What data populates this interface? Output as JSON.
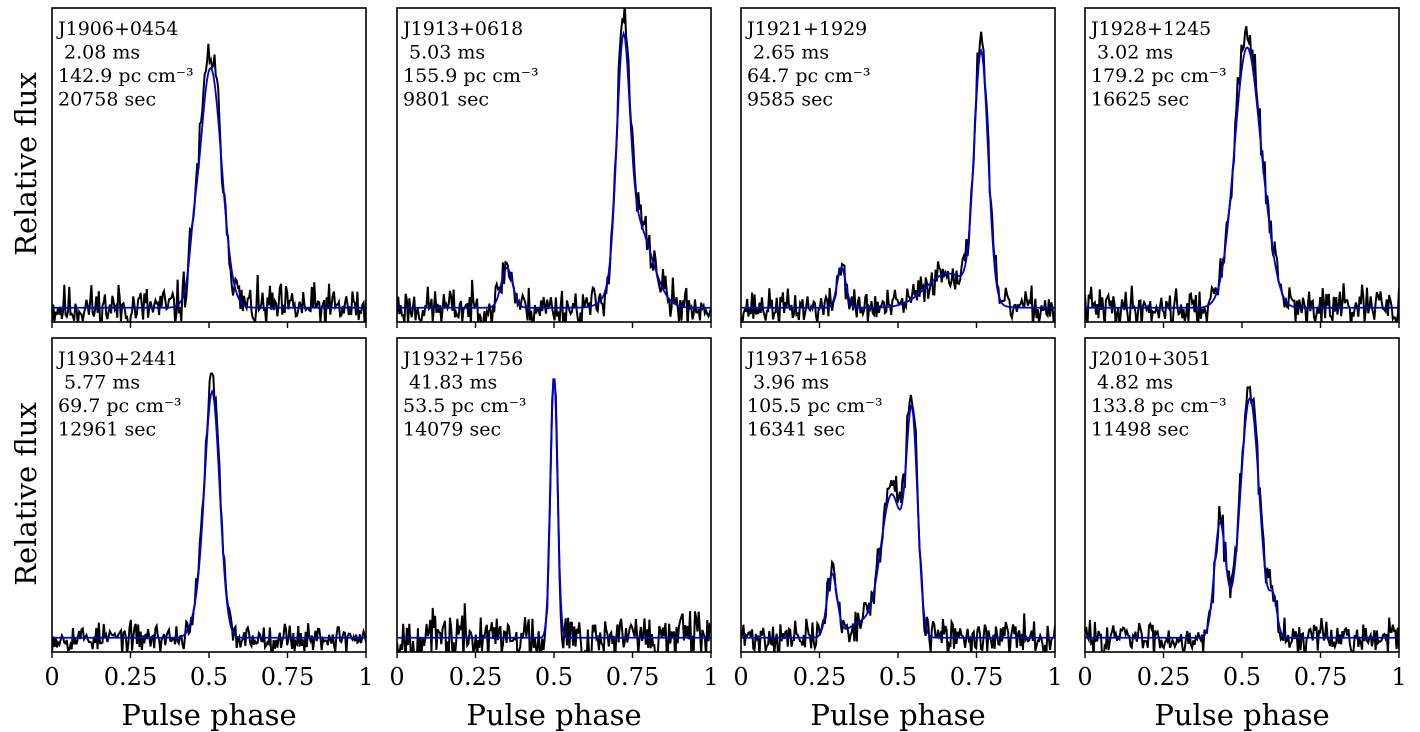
{
  "figure": {
    "xlabel": "Pulse phase",
    "ylabel": "Relative flux",
    "colors": {
      "data": "#000000",
      "model": "#0000dd",
      "frame": "#000000"
    }
  },
  "chart_data": [
    {
      "type": "line",
      "title": "",
      "xlabel": "Pulse phase",
      "ylabel": "Relative flux",
      "xlim": [
        0,
        1
      ],
      "ylim": [
        -0.05,
        1.05
      ],
      "grid": false,
      "xticks": [
        "0",
        "0.25",
        "0.5",
        "0.75",
        "1"
      ],
      "annotations": [
        "J1906+0454",
        " 2.08 ms",
        "142.9 pc cm⁻³",
        "20758 sec"
      ],
      "noise": 0.04,
      "seed": 11,
      "components": [
        {
          "center": 0.505,
          "amplitude": 0.84,
          "width": 0.035
        },
        {
          "center": 0.45,
          "amplitude": 0.08,
          "width": 0.012
        }
      ],
      "series": [
        {
          "name": "",
          "color": "#000000",
          "role": "data"
        },
        {
          "name": "",
          "color": "#0000dd",
          "role": "model"
        }
      ]
    },
    {
      "type": "line",
      "title": "",
      "xlabel": "Pulse phase",
      "ylabel": "Relative flux",
      "xlim": [
        0,
        1
      ],
      "ylim": [
        -0.05,
        1.05
      ],
      "grid": false,
      "xticks": [
        "0",
        "0.25",
        "0.5",
        "0.75",
        "1"
      ],
      "annotations": [
        "J1913+0618",
        " 5.03 ms",
        "155.9 pc cm⁻³",
        "9801 sec"
      ],
      "noise": 0.035,
      "seed": 23,
      "components": [
        {
          "center": 0.72,
          "amplitude": 0.74,
          "width": 0.02
        },
        {
          "center": 0.76,
          "amplitude": 0.3,
          "width": 0.05
        },
        {
          "center": 0.35,
          "amplitude": 0.14,
          "width": 0.018
        }
      ],
      "series": [
        {
          "name": "",
          "color": "#000000",
          "role": "data"
        },
        {
          "name": "",
          "color": "#0000dd",
          "role": "model"
        }
      ]
    },
    {
      "type": "line",
      "title": "",
      "xlabel": "Pulse phase",
      "ylabel": "Relative flux",
      "xlim": [
        0,
        1
      ],
      "ylim": [
        -0.05,
        1.05
      ],
      "grid": false,
      "xticks": [
        "0",
        "0.25",
        "0.5",
        "0.75",
        "1"
      ],
      "annotations": [
        "J1921+1929",
        " 2.65 ms",
        "64.7 pc cm⁻³",
        "9585 sec"
      ],
      "noise": 0.03,
      "seed": 37,
      "components": [
        {
          "center": 0.765,
          "amplitude": 0.86,
          "width": 0.022
        },
        {
          "center": 0.66,
          "amplitude": 0.12,
          "width": 0.07
        },
        {
          "center": 0.32,
          "amplitude": 0.14,
          "width": 0.014
        }
      ],
      "series": [
        {
          "name": "",
          "color": "#000000",
          "role": "data"
        },
        {
          "name": "",
          "color": "#0000dd",
          "role": "model"
        }
      ]
    },
    {
      "type": "line",
      "title": "",
      "xlabel": "Pulse phase",
      "ylabel": "Relative flux",
      "xlim": [
        0,
        1
      ],
      "ylim": [
        -0.05,
        1.05
      ],
      "grid": false,
      "xticks": [
        "0",
        "0.25",
        "0.5",
        "0.75",
        "1"
      ],
      "annotations": [
        "J1928+1245",
        " 3.02 ms",
        "179.2 pc cm⁻³",
        "16625 sec"
      ],
      "noise": 0.035,
      "seed": 41,
      "components": [
        {
          "center": 0.515,
          "amplitude": 0.9,
          "width": 0.04
        },
        {
          "center": 0.58,
          "amplitude": 0.12,
          "width": 0.03
        }
      ],
      "series": [
        {
          "name": "",
          "color": "#000000",
          "role": "data"
        },
        {
          "name": "",
          "color": "#0000dd",
          "role": "model"
        }
      ]
    },
    {
      "type": "line",
      "title": "",
      "xlabel": "Pulse phase",
      "ylabel": "Relative flux",
      "xlim": [
        0,
        1
      ],
      "ylim": [
        -0.05,
        1.05
      ],
      "grid": false,
      "xticks": [
        "0",
        "0.25",
        "0.5",
        "0.75",
        "1"
      ],
      "annotations": [
        "J1930+2441",
        " 5.77 ms",
        "69.7 pc cm⁻³",
        "12961 sec"
      ],
      "noise": 0.025,
      "seed": 53,
      "components": [
        {
          "center": 0.51,
          "amplitude": 0.86,
          "width": 0.024
        },
        {
          "center": 0.46,
          "amplitude": 0.06,
          "width": 0.02
        }
      ],
      "series": [
        {
          "name": "",
          "color": "#000000",
          "role": "data"
        },
        {
          "name": "",
          "color": "#0000dd",
          "role": "model"
        }
      ]
    },
    {
      "type": "line",
      "title": "",
      "xlabel": "Pulse phase",
      "ylabel": "Relative flux",
      "xlim": [
        0,
        1
      ],
      "ylim": [
        -0.05,
        1.05
      ],
      "grid": false,
      "xticks": [
        "0",
        "0.25",
        "0.5",
        "0.75",
        "1"
      ],
      "annotations": [
        "J1932+1756",
        " 41.83 ms",
        "53.5 pc cm⁻³",
        "14079 sec"
      ],
      "noise": 0.045,
      "seed": 67,
      "components": [
        {
          "center": 0.5,
          "amplitude": 0.92,
          "width": 0.011
        }
      ],
      "series": [
        {
          "name": "",
          "color": "#000000",
          "role": "data"
        },
        {
          "name": "",
          "color": "#0000dd",
          "role": "model"
        }
      ]
    },
    {
      "type": "line",
      "title": "",
      "xlabel": "Pulse phase",
      "ylabel": "Relative flux",
      "xlim": [
        0,
        1
      ],
      "ylim": [
        -0.05,
        1.05
      ],
      "grid": false,
      "xticks": [
        "0",
        "0.25",
        "0.5",
        "0.75",
        "1"
      ],
      "annotations": [
        "J1937+1658",
        " 3.96 ms",
        "105.5 pc cm⁻³",
        "16341 sec"
      ],
      "noise": 0.03,
      "seed": 71,
      "components": [
        {
          "center": 0.545,
          "amplitude": 0.72,
          "width": 0.018
        },
        {
          "center": 0.48,
          "amplitude": 0.5,
          "width": 0.035
        },
        {
          "center": 0.29,
          "amplitude": 0.22,
          "width": 0.016
        },
        {
          "center": 0.38,
          "amplitude": 0.05,
          "width": 0.04
        }
      ],
      "series": [
        {
          "name": "",
          "color": "#000000",
          "role": "data"
        },
        {
          "name": "",
          "color": "#0000dd",
          "role": "model"
        }
      ]
    },
    {
      "type": "line",
      "title": "",
      "xlabel": "Pulse phase",
      "ylabel": "Relative flux",
      "xlim": [
        0,
        1
      ],
      "ylim": [
        -0.05,
        1.05
      ],
      "grid": false,
      "xticks": [
        "0",
        "0.25",
        "0.5",
        "0.75",
        "1"
      ],
      "annotations": [
        "J2010+3051",
        " 4.82 ms",
        "133.8 pc cm⁻³",
        "11498 sec"
      ],
      "noise": 0.03,
      "seed": 83,
      "components": [
        {
          "center": 0.525,
          "amplitude": 0.84,
          "width": 0.03
        },
        {
          "center": 0.43,
          "amplitude": 0.4,
          "width": 0.018
        },
        {
          "center": 0.6,
          "amplitude": 0.12,
          "width": 0.012
        }
      ],
      "series": [
        {
          "name": "",
          "color": "#000000",
          "role": "data"
        },
        {
          "name": "",
          "color": "#0000dd",
          "role": "model"
        }
      ]
    }
  ]
}
